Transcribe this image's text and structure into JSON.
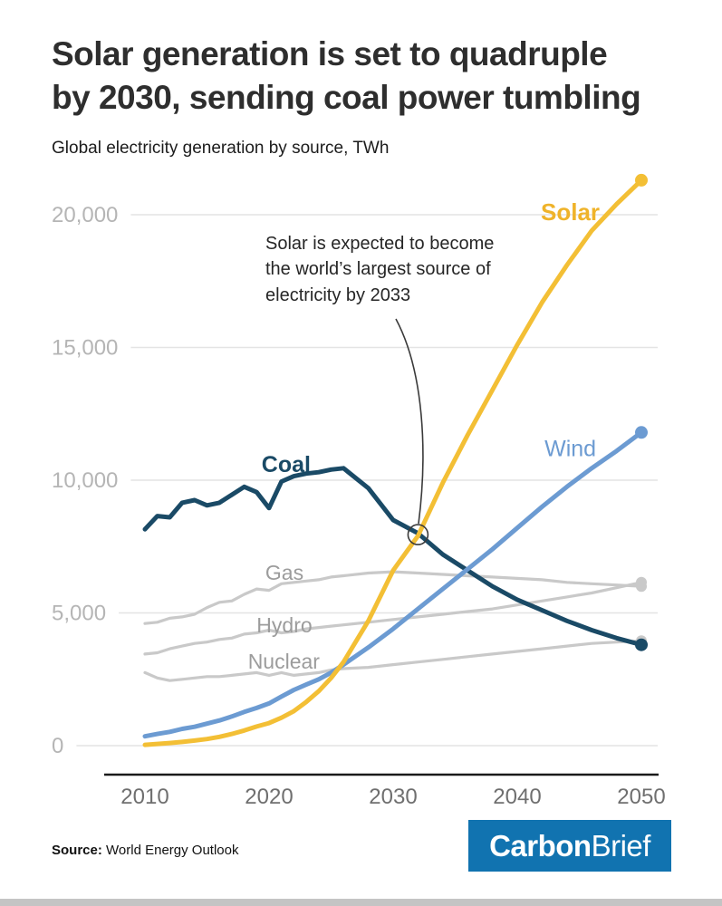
{
  "header": {
    "title_line1": "Solar generation is set to quadruple",
    "title_line2": "by 2030, sending coal power tumbling",
    "subtitle": "Global electricity generation by source, TWh"
  },
  "annotation": {
    "lines": [
      "Solar is expected to become",
      "the world’s largest source of",
      "electricity by 2033"
    ]
  },
  "footer": {
    "source_label": "Source:",
    "source_text": " World Energy Outlook",
    "logo_part1": "Carbon",
    "logo_part2": "Brief",
    "logo_bg": "#1173B0"
  },
  "chart_data": {
    "type": "line",
    "title": "Solar generation is set to quadruple by 2030, sending coal power tumbling",
    "subtitle": "Global electricity generation by source, TWh",
    "ylabel": "TWh",
    "grid": true,
    "legend_position": "inline-labels",
    "x_ticks": [
      2010,
      2020,
      2030,
      2040,
      2050
    ],
    "y_ticks": [
      0,
      5000,
      10000,
      15000,
      20000
    ],
    "y_tick_labels": [
      "0",
      "5,000",
      "10,000",
      "15,000",
      "20,000"
    ],
    "xlim": [
      2010,
      2050
    ],
    "ylim": [
      0,
      21500
    ],
    "x": [
      2010,
      2011,
      2012,
      2013,
      2014,
      2015,
      2016,
      2017,
      2018,
      2019,
      2020,
      2021,
      2022,
      2023,
      2024,
      2025,
      2026,
      2028,
      2030,
      2032,
      2034,
      2036,
      2038,
      2040,
      2042,
      2044,
      2046,
      2048,
      2050
    ],
    "annotation_target": {
      "year": 2032,
      "value": 7950
    },
    "series": [
      {
        "name": "Solar",
        "color": "#F3BF35",
        "label_color": "#EFB32A",
        "label_bold": true,
        "label_size": 26,
        "label_pos": {
          "year": 2041.9,
          "value": 19800
        },
        "values": [
          30,
          65,
          100,
          140,
          190,
          250,
          330,
          440,
          570,
          720,
          850,
          1050,
          1300,
          1650,
          2050,
          2550,
          3150,
          4700,
          6600,
          7900,
          9900,
          11700,
          13400,
          15100,
          16700,
          18100,
          19400,
          20400,
          21300
        ]
      },
      {
        "name": "Wind",
        "color": "#6C9BD2",
        "label_color": "#6C9BD2",
        "label_bold": false,
        "label_size": 25,
        "label_pos": {
          "year": 2042.2,
          "value": 10900
        },
        "values": [
          350,
          440,
          520,
          630,
          710,
          830,
          950,
          1100,
          1270,
          1420,
          1590,
          1850,
          2100,
          2300,
          2500,
          2750,
          3050,
          3700,
          4400,
          5150,
          5900,
          6650,
          7400,
          8200,
          9000,
          9750,
          10450,
          11100,
          11800
        ]
      },
      {
        "name": "Coal",
        "color": "#1A4A66",
        "label_color": "#1A4A66",
        "label_bold": true,
        "label_size": 25,
        "label_pos": {
          "year": 2019.4,
          "value": 10300
        },
        "values": [
          8150,
          8650,
          8600,
          9150,
          9250,
          9050,
          9150,
          9450,
          9750,
          9550,
          8950,
          9950,
          10150,
          10250,
          10300,
          10400,
          10450,
          9700,
          8500,
          8000,
          7200,
          6600,
          6000,
          5500,
          5100,
          4700,
          4350,
          4050,
          3800
        ]
      },
      {
        "name": "Gas",
        "color": "#C9C9C9",
        "label_color": "#9C9C9C",
        "label_bold": false,
        "label_size": 23,
        "label_pos": {
          "year": 2019.7,
          "value": 6250
        },
        "values": [
          4600,
          4650,
          4800,
          4850,
          4950,
          5200,
          5400,
          5450,
          5700,
          5900,
          5850,
          6100,
          6150,
          6200,
          6250,
          6350,
          6400,
          6500,
          6550,
          6500,
          6450,
          6400,
          6350,
          6300,
          6250,
          6150,
          6100,
          6050,
          6000
        ]
      },
      {
        "name": "Hydro",
        "color": "#C9C9C9",
        "label_color": "#9C9C9C",
        "label_bold": false,
        "label_size": 23,
        "label_pos": {
          "year": 2019.0,
          "value": 4270
        },
        "values": [
          3450,
          3500,
          3650,
          3750,
          3850,
          3900,
          4000,
          4050,
          4200,
          4250,
          4350,
          4250,
          4300,
          4400,
          4450,
          4500,
          4550,
          4650,
          4750,
          4850,
          4950,
          5050,
          5150,
          5300,
          5450,
          5600,
          5750,
          5950,
          6150
        ]
      },
      {
        "name": "Nuclear",
        "color": "#C9C9C9",
        "label_color": "#9C9C9C",
        "label_bold": false,
        "label_size": 23,
        "label_pos": {
          "year": 2018.3,
          "value": 2900
        },
        "values": [
          2750,
          2550,
          2450,
          2500,
          2550,
          2600,
          2600,
          2650,
          2700,
          2750,
          2650,
          2750,
          2650,
          2700,
          2750,
          2850,
          2900,
          2950,
          3050,
          3150,
          3250,
          3350,
          3450,
          3550,
          3650,
          3750,
          3850,
          3900,
          3950
        ]
      }
    ]
  }
}
